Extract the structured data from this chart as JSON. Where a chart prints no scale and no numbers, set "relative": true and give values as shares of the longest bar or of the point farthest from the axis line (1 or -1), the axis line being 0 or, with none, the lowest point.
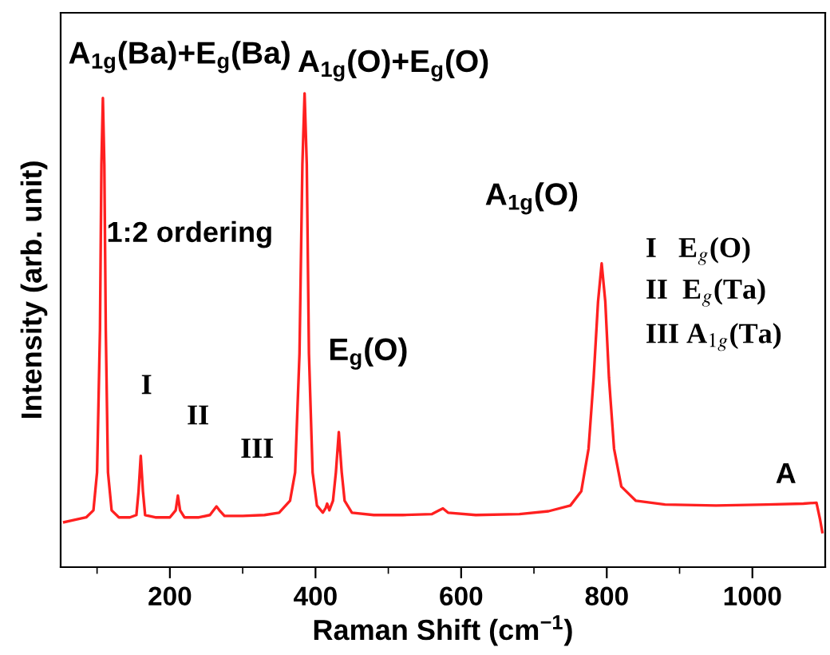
{
  "chart_data": {
    "type": "line",
    "relative": true,
    "xlabel": "Raman Shift (cm$^{−1}$)",
    "ylabel": "Intensity (arb. unit)",
    "xlim": [
      50,
      1100
    ],
    "xticks": [
      {
        "value": 100,
        "label": null
      },
      200,
      {
        "value": 300,
        "label": null
      },
      400,
      {
        "value": 500,
        "label": null
      },
      600,
      {
        "value": 700,
        "label": null
      },
      800,
      {
        "value": 900,
        "label": null
      },
      1000
    ],
    "tick_labels": "x",
    "grid": false,
    "marker": "none",
    "line_style": "solid",
    "annotations": [
      "A$_{1g}$(Ba)+E$_{g}$(Ba)",
      "A$_{1g}$(O)+E$_{g}$(O)",
      "1:2 ordering",
      "I",
      "II",
      "III",
      "E$_{g}$(O)",
      "A$_{1g}$(O)",
      "I   E$_{g}$(O)",
      "II  E$_{g}$(Ta)",
      "III A$_{1g}$(Ta)",
      "A"
    ],
    "series": [
      {
        "color": "#ff2020",
        "x": [
          55,
          70,
          85,
          95,
          100,
          104,
          106,
          108,
          110,
          112,
          115,
          120,
          130,
          145,
          154,
          157,
          160,
          163,
          166,
          180,
          200,
          208,
          211,
          214,
          220,
          240,
          255,
          260,
          264,
          268,
          275,
          300,
          330,
          350,
          365,
          372,
          378,
          382,
          385,
          388,
          391,
          396,
          402,
          410,
          414,
          416,
          419,
          424,
          428,
          432,
          436,
          440,
          450,
          480,
          520,
          560,
          570,
          575,
          582,
          620,
          680,
          720,
          750,
          765,
          775,
          782,
          788,
          793,
          798,
          803,
          810,
          820,
          840,
          880,
          950,
          1020,
          1070,
          1088,
          1093,
          1096
        ],
        "values": [
          0.095,
          0.1,
          0.105,
          0.12,
          0.2,
          0.5,
          0.85,
          0.99,
          0.85,
          0.5,
          0.2,
          0.12,
          0.105,
          0.105,
          0.11,
          0.16,
          0.235,
          0.16,
          0.11,
          0.105,
          0.105,
          0.12,
          0.151,
          0.12,
          0.105,
          0.105,
          0.11,
          0.12,
          0.128,
          0.12,
          0.108,
          0.108,
          0.11,
          0.115,
          0.14,
          0.2,
          0.45,
          0.85,
          1.0,
          0.85,
          0.45,
          0.2,
          0.13,
          0.115,
          0.125,
          0.134,
          0.12,
          0.14,
          0.2,
          0.285,
          0.2,
          0.14,
          0.115,
          0.11,
          0.11,
          0.112,
          0.12,
          0.124,
          0.115,
          0.11,
          0.112,
          0.118,
          0.13,
          0.16,
          0.25,
          0.4,
          0.56,
          0.641,
          0.56,
          0.4,
          0.25,
          0.17,
          0.14,
          0.132,
          0.13,
          0.132,
          0.134,
          0.136,
          0.1,
          0.074
        ]
      }
    ]
  }
}
